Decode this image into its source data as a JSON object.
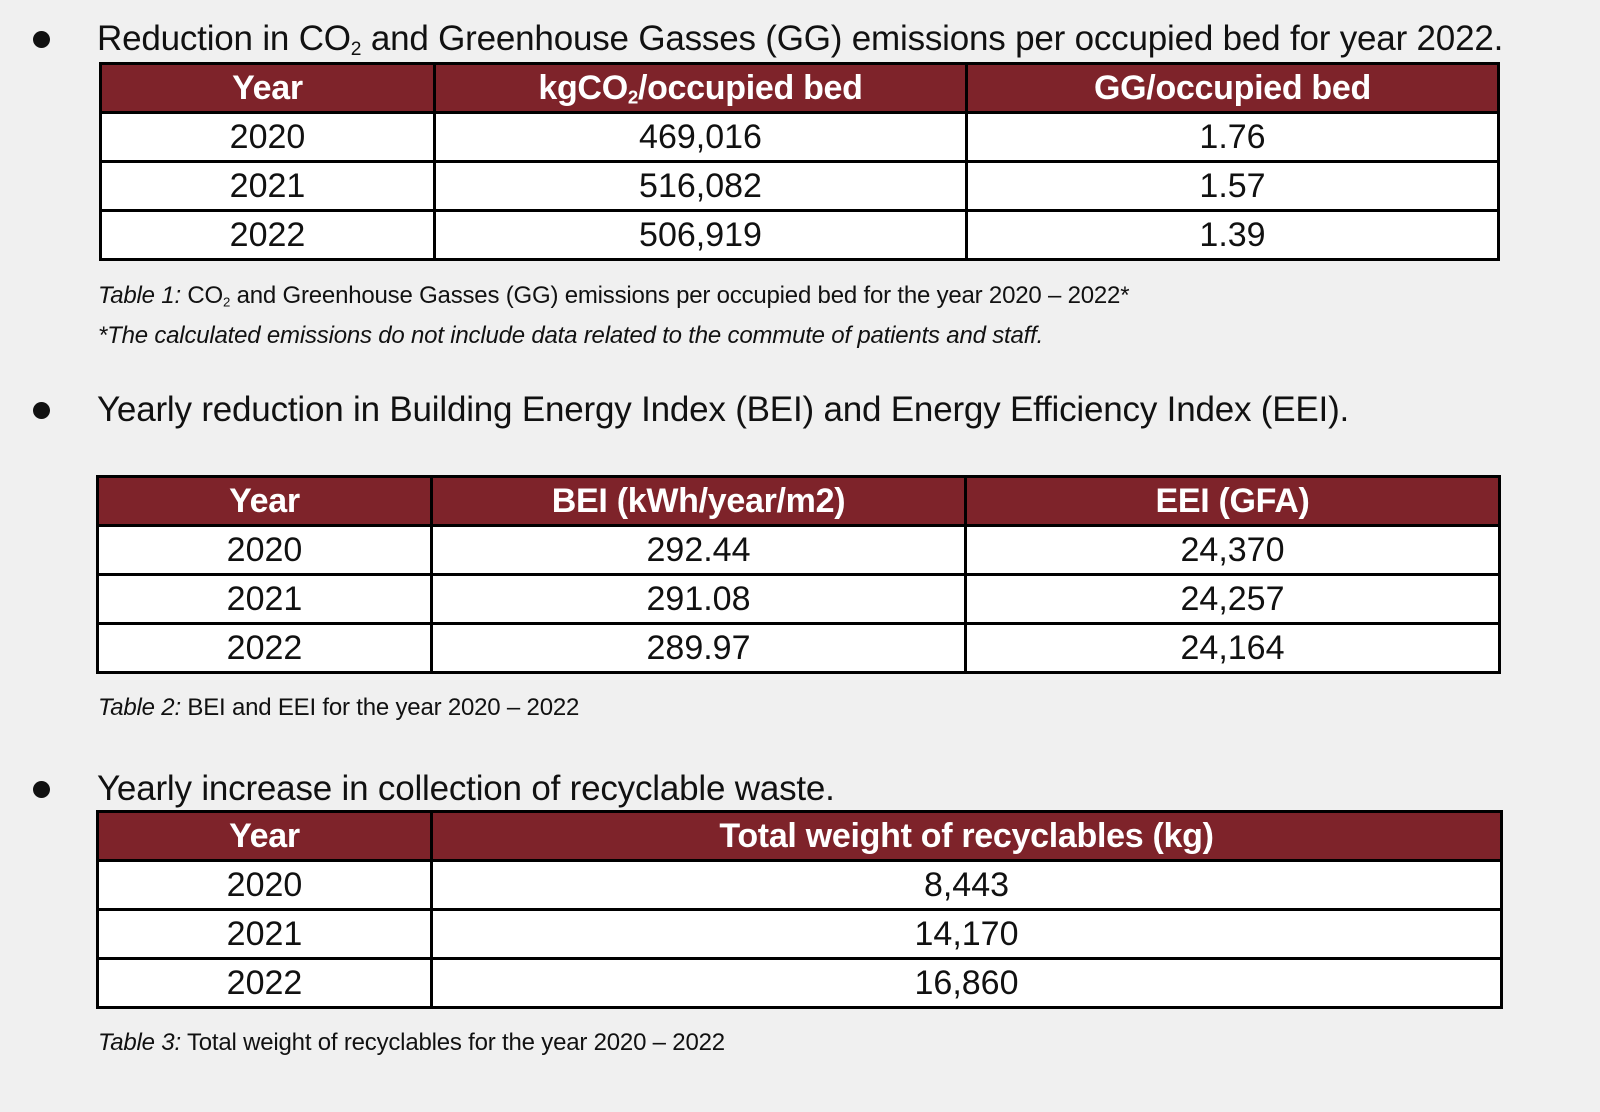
{
  "section1": {
    "bullet_before": "Reduction in CO",
    "bullet_sub": "2",
    "bullet_after": " and Greenhouse Gasses (GG) emissions per occupied bed for year 2022.",
    "headers": {
      "year": "Year",
      "col2_before": "kgCO",
      "col2_sub": "2",
      "col2_after": "/occupied bed",
      "col3": "GG/occupied bed"
    },
    "rows": [
      {
        "year": "2020",
        "kgco2": "469,016",
        "gg": "1.76"
      },
      {
        "year": "2021",
        "kgco2": "516,082",
        "gg": "1.57"
      },
      {
        "year": "2022",
        "kgco2": "506,919",
        "gg": "1.39"
      }
    ],
    "caption_label": "Table 1:",
    "caption_before": " CO",
    "caption_sub": "2",
    "caption_after": " and Greenhouse Gasses (GG) emissions per occupied bed for the year 2020 – 2022*",
    "note": "*The calculated emissions do not include data related to the commute of patients and staff."
  },
  "section2": {
    "bullet": "Yearly reduction in Building Energy Index (BEI) and Energy Efficiency Index (EEI).",
    "headers": {
      "year": "Year",
      "bei": "BEI (kWh/year/m2)",
      "eei": "EEI (GFA)"
    },
    "rows": [
      {
        "year": "2020",
        "bei": "292.44",
        "eei": "24,370"
      },
      {
        "year": "2021",
        "bei": "291.08",
        "eei": "24,257"
      },
      {
        "year": "2022",
        "bei": "289.97",
        "eei": "24,164"
      }
    ],
    "caption_label": "Table 2:",
    "caption_text": " BEI and EEI for the year 2020 – 2022"
  },
  "section3": {
    "bullet": "Yearly increase in collection of recyclable waste.",
    "headers": {
      "year": "Year",
      "weight": "Total weight of recyclables (kg)"
    },
    "rows": [
      {
        "year": "2020",
        "weight": "8,443"
      },
      {
        "year": "2021",
        "weight": "14,170"
      },
      {
        "year": "2022",
        "weight": "16,860"
      }
    ],
    "caption_label": "Table 3:",
    "caption_text": " Total weight of recyclables for the year 2020 – 2022"
  }
}
